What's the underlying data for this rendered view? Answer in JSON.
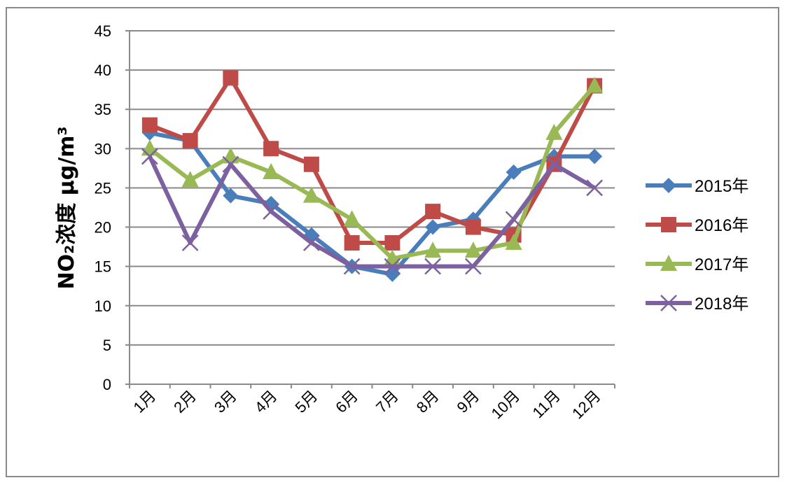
{
  "chart_data": {
    "type": "line",
    "title": "",
    "xlabel": "",
    "ylabel": "NO₂浓度 μg/m³",
    "ylim": [
      0,
      45
    ],
    "yticks": [
      0,
      5,
      10,
      15,
      20,
      25,
      30,
      35,
      40,
      45
    ],
    "grid": true,
    "legend_position": "right",
    "categories": [
      "1月",
      "2月",
      "3月",
      "4月",
      "5月",
      "6月",
      "7月",
      "8月",
      "9月",
      "10月",
      "11月",
      "12月"
    ],
    "series": [
      {
        "name": "2015年",
        "color": "#4A7EBB",
        "marker": "diamond",
        "values": [
          32,
          31,
          24,
          23,
          19,
          15,
          14,
          20,
          21,
          27,
          29,
          29
        ]
      },
      {
        "name": "2016年",
        "color": "#BE4B48",
        "marker": "square",
        "values": [
          33,
          31,
          39,
          30,
          28,
          18,
          18,
          22,
          20,
          19,
          28,
          38
        ]
      },
      {
        "name": "2017年",
        "color": "#98B954",
        "marker": "triangle",
        "values": [
          30,
          26,
          29,
          27,
          24,
          21,
          16,
          17,
          17,
          18,
          32,
          38
        ]
      },
      {
        "name": "2018年",
        "color": "#7D60A0",
        "marker": "x",
        "values": [
          29,
          18,
          28,
          22,
          18,
          15,
          15,
          15,
          15,
          21,
          28,
          25
        ]
      }
    ]
  }
}
